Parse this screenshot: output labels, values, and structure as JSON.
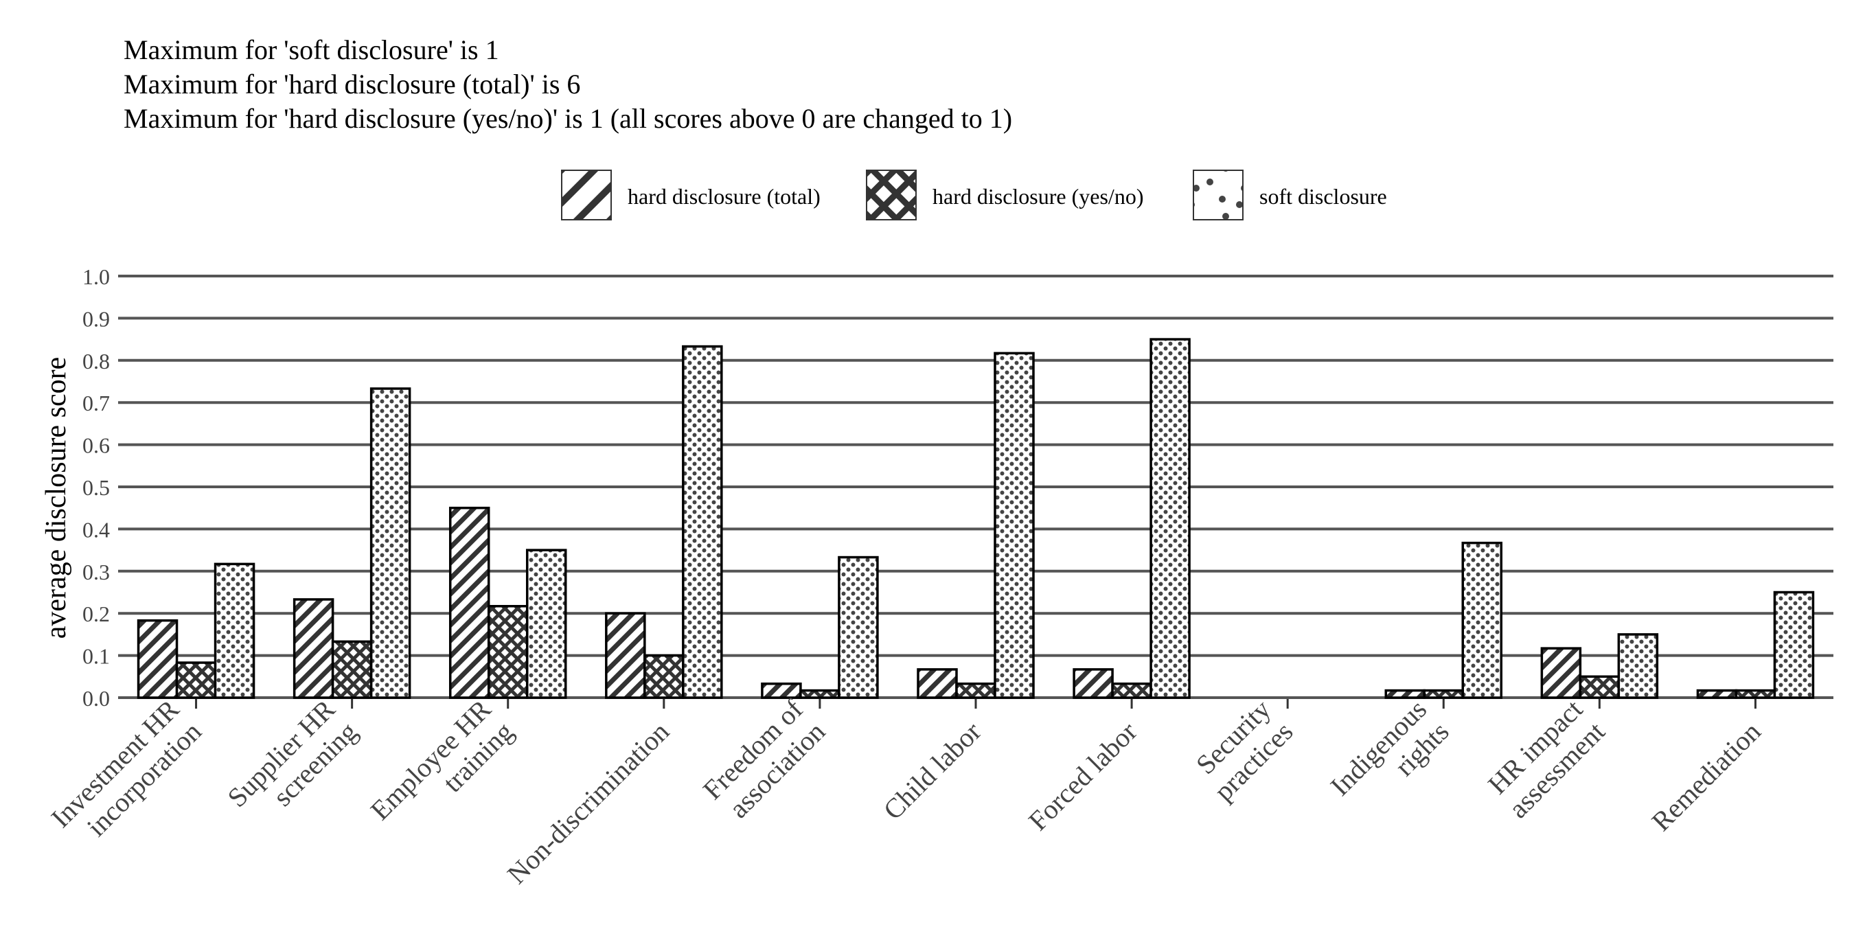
{
  "notes": [
    "Maximum for 'soft disclosure' is 1",
    "Maximum for 'hard disclosure (total)' is 6",
    "Maximum for 'hard disclosure (yes/no)' is 1 (all scores above 0 are changed to 1)"
  ],
  "chart_data": {
    "type": "bar",
    "title": "",
    "xlabel": "",
    "ylabel": "average disclosure score",
    "ylim": [
      0,
      1.0
    ],
    "y_ticks": [
      "0.0",
      "0.1",
      "0.2",
      "0.3",
      "0.4",
      "0.5",
      "0.6",
      "0.7",
      "0.8",
      "0.9",
      "1.0"
    ],
    "grid": "horizontal",
    "legend_position": "top",
    "categories": [
      [
        "Investment HR",
        "incorporation"
      ],
      [
        "Supplier HR",
        "screening"
      ],
      [
        "Employee HR",
        "training"
      ],
      [
        "Non-discrimination"
      ],
      [
        "Freedom of",
        "association"
      ],
      [
        "Child labor"
      ],
      [
        "Forced labor"
      ],
      [
        "Security",
        "practices"
      ],
      [
        "Indigenous",
        "rights"
      ],
      [
        "HR impact",
        "assessment"
      ],
      [
        "Remediation"
      ]
    ],
    "series": [
      {
        "name": "hard disclosure (total)",
        "pattern": "diagonal-stripes",
        "values": [
          0.183,
          0.233,
          0.45,
          0.2,
          0.033,
          0.067,
          0.067,
          0.0,
          0.017,
          0.117,
          0.017
        ]
      },
      {
        "name": "hard disclosure (yes/no)",
        "pattern": "crosshatch",
        "values": [
          0.083,
          0.133,
          0.217,
          0.1,
          0.017,
          0.033,
          0.033,
          0.0,
          0.017,
          0.05,
          0.017
        ]
      },
      {
        "name": "soft disclosure",
        "pattern": "dots",
        "values": [
          0.317,
          0.733,
          0.35,
          0.833,
          0.333,
          0.817,
          0.85,
          0.0,
          0.367,
          0.15,
          0.25
        ]
      }
    ],
    "colors": {
      "bar_outline": "#000000",
      "grid": "#555555",
      "background": "#ffffff"
    }
  }
}
